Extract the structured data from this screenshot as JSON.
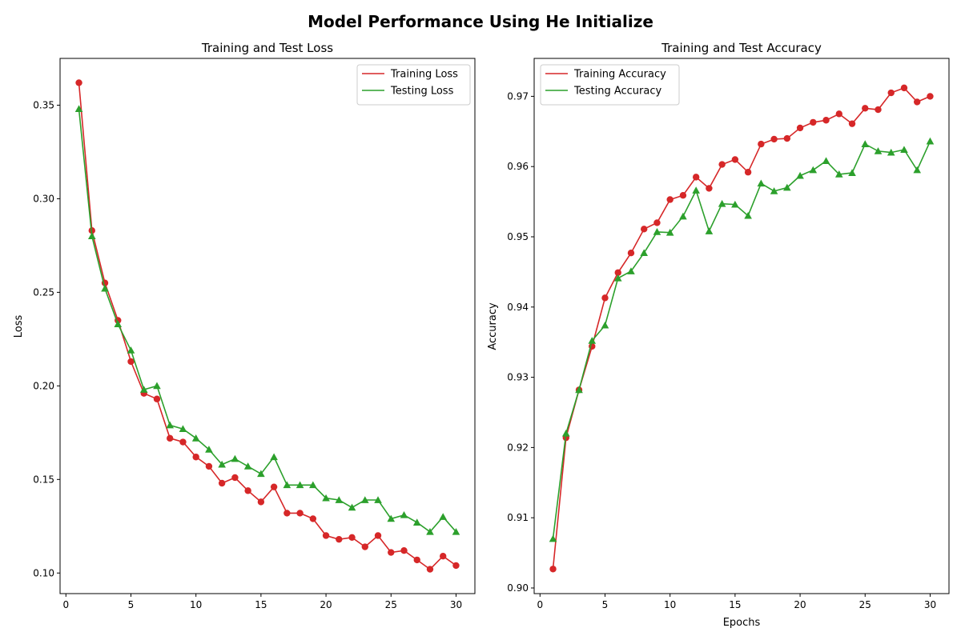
{
  "figure": {
    "title": "Model Performance Using He Initialize"
  },
  "chart_data": [
    {
      "type": "line",
      "title": "Training and Test Loss",
      "xlabel": "",
      "ylabel": "Loss",
      "xlim": [
        -0.45,
        31.45
      ],
      "ylim": [
        0.089,
        0.375
      ],
      "xticks": [
        0,
        5,
        10,
        15,
        20,
        25,
        30
      ],
      "yticks": [
        0.1,
        0.15,
        0.2,
        0.25,
        0.3,
        0.35
      ],
      "ytick_labels": [
        "0.10",
        "0.15",
        "0.20",
        "0.25",
        "0.30",
        "0.35"
      ],
      "grid": false,
      "legend": "top-right",
      "x": [
        1,
        2,
        3,
        4,
        5,
        6,
        7,
        8,
        9,
        10,
        11,
        12,
        13,
        14,
        15,
        16,
        17,
        18,
        19,
        20,
        21,
        22,
        23,
        24,
        25,
        26,
        27,
        28,
        29,
        30
      ],
      "series": [
        {
          "name": "Training Loss",
          "color": "#d62728",
          "marker": "circle",
          "values": [
            0.362,
            0.283,
            0.255,
            0.235,
            0.213,
            0.196,
            0.193,
            0.172,
            0.17,
            0.162,
            0.157,
            0.148,
            0.151,
            0.144,
            0.138,
            0.146,
            0.132,
            0.132,
            0.129,
            0.12,
            0.118,
            0.119,
            0.114,
            0.12,
            0.111,
            0.112,
            0.107,
            0.102,
            0.109,
            0.104
          ]
        },
        {
          "name": "Testing Loss",
          "color": "#2ca02c",
          "marker": "triangle",
          "values": [
            0.348,
            0.28,
            0.252,
            0.233,
            0.219,
            0.198,
            0.2,
            0.179,
            0.177,
            0.172,
            0.166,
            0.158,
            0.161,
            0.157,
            0.153,
            0.162,
            0.147,
            0.147,
            0.147,
            0.14,
            0.139,
            0.135,
            0.139,
            0.139,
            0.129,
            0.131,
            0.127,
            0.122,
            0.13,
            0.122
          ]
        }
      ]
    },
    {
      "type": "line",
      "title": "Training and Test Accuracy",
      "xlabel": "Epochs",
      "ylabel": "Accuracy",
      "xlim": [
        -0.45,
        31.45
      ],
      "ylim": [
        0.8992,
        0.9754
      ],
      "xticks": [
        0,
        5,
        10,
        15,
        20,
        25,
        30
      ],
      "yticks": [
        0.9,
        0.91,
        0.92,
        0.93,
        0.94,
        0.95,
        0.96,
        0.97
      ],
      "ytick_labels": [
        "0.90",
        "0.91",
        "0.92",
        "0.93",
        "0.94",
        "0.95",
        "0.96",
        "0.97"
      ],
      "grid": false,
      "legend": "top-left",
      "x": [
        1,
        2,
        3,
        4,
        5,
        6,
        7,
        8,
        9,
        10,
        11,
        12,
        13,
        14,
        15,
        16,
        17,
        18,
        19,
        20,
        21,
        22,
        23,
        24,
        25,
        26,
        27,
        28,
        29,
        30
      ],
      "series": [
        {
          "name": "Training Accuracy",
          "color": "#d62728",
          "marker": "circle",
          "values": [
            0.9027,
            0.9214,
            0.9282,
            0.9344,
            0.9413,
            0.9449,
            0.9477,
            0.9511,
            0.952,
            0.9553,
            0.9559,
            0.9585,
            0.9569,
            0.9603,
            0.961,
            0.9592,
            0.9632,
            0.9639,
            0.964,
            0.9655,
            0.9663,
            0.9666,
            0.9675,
            0.9661,
            0.9683,
            0.9681,
            0.9705,
            0.9712,
            0.9692,
            0.97
          ]
        },
        {
          "name": "Testing Accuracy",
          "color": "#2ca02c",
          "marker": "triangle",
          "values": [
            0.907,
            0.922,
            0.9282,
            0.9352,
            0.9374,
            0.9441,
            0.9451,
            0.9477,
            0.9507,
            0.9506,
            0.9529,
            0.9566,
            0.9508,
            0.9547,
            0.9546,
            0.953,
            0.9576,
            0.9565,
            0.957,
            0.9587,
            0.9595,
            0.9608,
            0.9589,
            0.9591,
            0.9632,
            0.9622,
            0.962,
            0.9624,
            0.9595,
            0.9636
          ]
        }
      ]
    }
  ]
}
